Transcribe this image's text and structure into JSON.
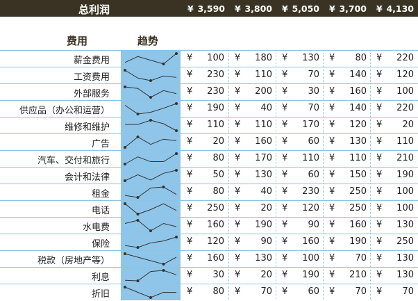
{
  "header": {
    "title": "总利润",
    "currency": "¥",
    "totals": [
      "3,590",
      "3,800",
      "5,050",
      "3,700",
      "4,130"
    ]
  },
  "columns": {
    "expense": "费用",
    "trend": "趋势"
  },
  "colors": {
    "header_bg": "#3a3323",
    "sparkline_bg": "#8ec5e8",
    "row_line": "#8cc3e6"
  },
  "rows": [
    {
      "label": "薪金费用",
      "values": [
        100,
        180,
        130,
        80,
        220
      ]
    },
    {
      "label": "工资费用",
      "values": [
        230,
        110,
        70,
        140,
        120
      ]
    },
    {
      "label": "外部服务",
      "values": [
        230,
        200,
        30,
        160,
        100
      ]
    },
    {
      "label": "供应品（办公和运营）",
      "values": [
        190,
        40,
        70,
        140,
        220
      ]
    },
    {
      "label": "维修和维护",
      "values": [
        110,
        110,
        170,
        120,
        20
      ]
    },
    {
      "label": "广告",
      "values": [
        20,
        160,
        60,
        130,
        110
      ]
    },
    {
      "label": "汽车、交付和旅行",
      "values": [
        80,
        170,
        110,
        110,
        210
      ]
    },
    {
      "label": "会计和法律",
      "values": [
        50,
        130,
        60,
        150,
        190
      ]
    },
    {
      "label": "租金",
      "values": [
        80,
        40,
        230,
        250,
        100
      ]
    },
    {
      "label": "电话",
      "values": [
        250,
        20,
        120,
        250,
        100
      ]
    },
    {
      "label": "水电费",
      "values": [
        160,
        190,
        90,
        160,
        130
      ]
    },
    {
      "label": "保险",
      "values": [
        120,
        90,
        160,
        190,
        250
      ]
    },
    {
      "label": "税款（房地产等）",
      "values": [
        160,
        130,
        100,
        70,
        130
      ]
    },
    {
      "label": "利息",
      "values": [
        30,
        20,
        190,
        210,
        130
      ]
    },
    {
      "label": "折旧",
      "values": [
        80,
        70,
        60,
        70,
        70
      ]
    }
  ]
}
